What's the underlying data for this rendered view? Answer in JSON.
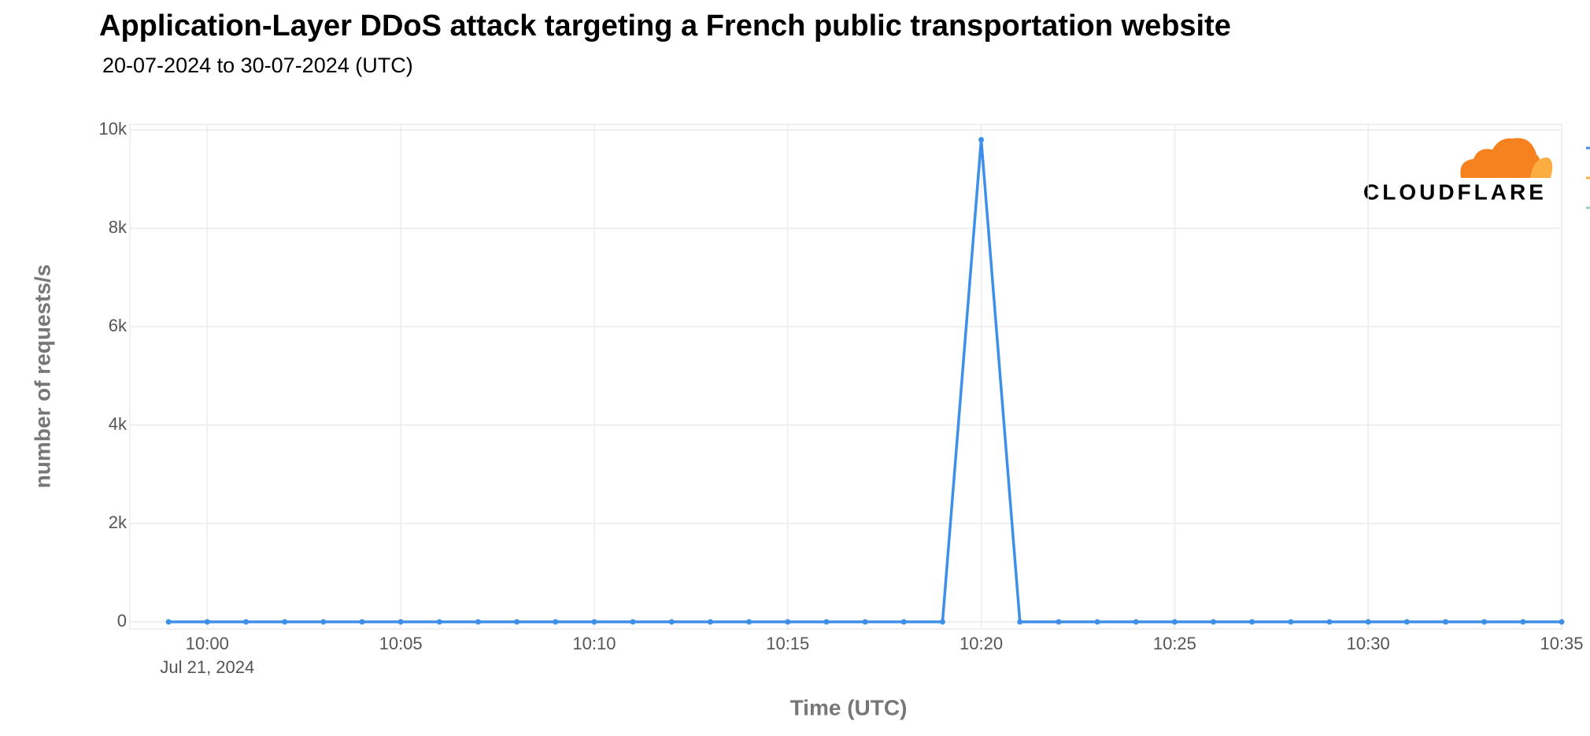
{
  "chart_data": {
    "type": "line",
    "title": "Application-Layer DDoS attack targeting a French public transportation website",
    "subtitle": "20-07-2024 to 30-07-2024 (UTC)",
    "x_label": "Time (UTC)",
    "y_label": "number of requests/s",
    "x_date_label": "Jul 21, 2024",
    "logo_text": "CLOUDFLARE",
    "x": [
      "2024-07-21 09:59",
      "2024-07-21 10:00",
      "2024-07-21 10:01",
      "2024-07-21 10:02",
      "2024-07-21 10:03",
      "2024-07-21 10:04",
      "2024-07-21 10:05",
      "2024-07-21 10:06",
      "2024-07-21 10:07",
      "2024-07-21 10:08",
      "2024-07-21 10:09",
      "2024-07-21 10:10",
      "2024-07-21 10:11",
      "2024-07-21 10:12",
      "2024-07-21 10:13",
      "2024-07-21 10:14",
      "2024-07-21 10:15",
      "2024-07-21 10:16",
      "2024-07-21 10:17",
      "2024-07-21 10:18",
      "2024-07-21 10:19",
      "2024-07-21 10:20",
      "2024-07-21 10:21",
      "2024-07-21 10:22",
      "2024-07-21 10:23",
      "2024-07-21 10:24",
      "2024-07-21 10:25",
      "2024-07-21 10:26",
      "2024-07-21 10:27",
      "2024-07-21 10:28",
      "2024-07-21 10:29",
      "2024-07-21 10:30",
      "2024-07-21 10:31",
      "2024-07-21 10:32",
      "2024-07-21 10:33",
      "2024-07-21 10:34",
      "2024-07-21 10:35"
    ],
    "series": [
      {
        "color": "#3d8fe8",
        "values": [
          0,
          0,
          0,
          0,
          0,
          0,
          0,
          0,
          0,
          0,
          0,
          0,
          0,
          0,
          0,
          0,
          0,
          0,
          0,
          0,
          0,
          9800,
          0,
          0,
          0,
          0,
          0,
          0,
          0,
          0,
          0,
          0,
          0,
          0,
          0,
          0,
          0
        ]
      }
    ],
    "xlim": [
      "2024-07-21 09:58",
      "2024-07-21 10:35"
    ],
    "xticks": [
      {
        "value": "2024-07-21 10:00",
        "label": "10:00"
      },
      {
        "value": "2024-07-21 10:05",
        "label": "10:05"
      },
      {
        "value": "2024-07-21 10:10",
        "label": "10:10"
      },
      {
        "value": "2024-07-21 10:15",
        "label": "10:15"
      },
      {
        "value": "2024-07-21 10:20",
        "label": "10:20"
      },
      {
        "value": "2024-07-21 10:25",
        "label": "10:25"
      },
      {
        "value": "2024-07-21 10:30",
        "label": "10:30"
      },
      {
        "value": "2024-07-21 10:35",
        "label": "10:35"
      }
    ],
    "ylim": [
      0,
      10000
    ],
    "yticks": [
      0,
      {
        "value": 2000,
        "label": "2k"
      },
      {
        "value": 4000,
        "label": "4k"
      },
      {
        "value": 6000,
        "label": "6k"
      },
      {
        "value": 8000,
        "label": "8k"
      },
      {
        "value": 10000,
        "label": "10k"
      }
    ],
    "grid": true
  }
}
